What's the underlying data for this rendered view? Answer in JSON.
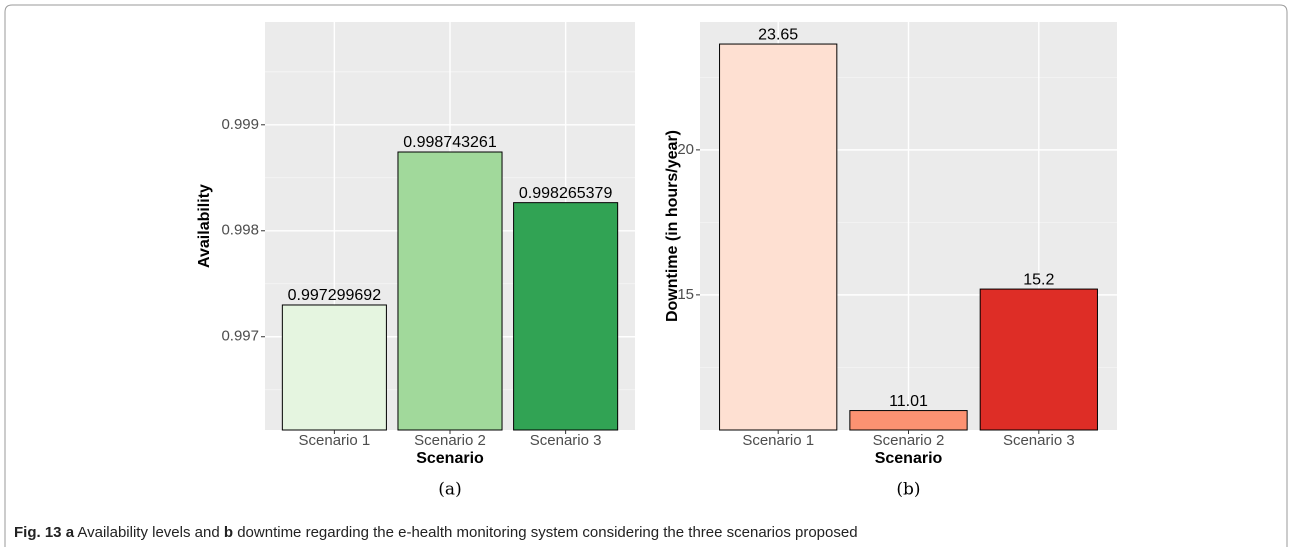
{
  "chart_data": [
    {
      "type": "bar",
      "label": "(a)",
      "x_label": "Scenario",
      "y_label": "Availability",
      "categories": [
        "Scenario 1",
        "Scenario 2",
        "Scenario 3"
      ],
      "values": [
        0.997299692,
        0.998743261,
        0.998265379
      ],
      "colors": [
        "#e5f5e0",
        "#a1d99b",
        "#31a354"
      ],
      "ylim": [
        0.99612,
        0.99997
      ],
      "yticks": [
        0.997,
        0.998,
        0.999
      ],
      "grid": true
    },
    {
      "type": "bar",
      "label": "(b)",
      "x_label": "Scenario",
      "y_label": "Downtime (in hours/year)",
      "categories": [
        "Scenario 1",
        "Scenario 2",
        "Scenario 3"
      ],
      "values": [
        23.65,
        11.01,
        15.2
      ],
      "colors": [
        "#fee0d2",
        "#fc9272",
        "#de2d26"
      ],
      "ylim": [
        10.34,
        24.41
      ],
      "yticks": [
        15,
        20
      ],
      "grid": true
    }
  ],
  "caption": {
    "label": "Fig. 13",
    "a": "a",
    "text1": "Availability levels and",
    "b": "b",
    "text2": "downtime regarding the e-health monitoring system considering the three scenarios proposed"
  }
}
